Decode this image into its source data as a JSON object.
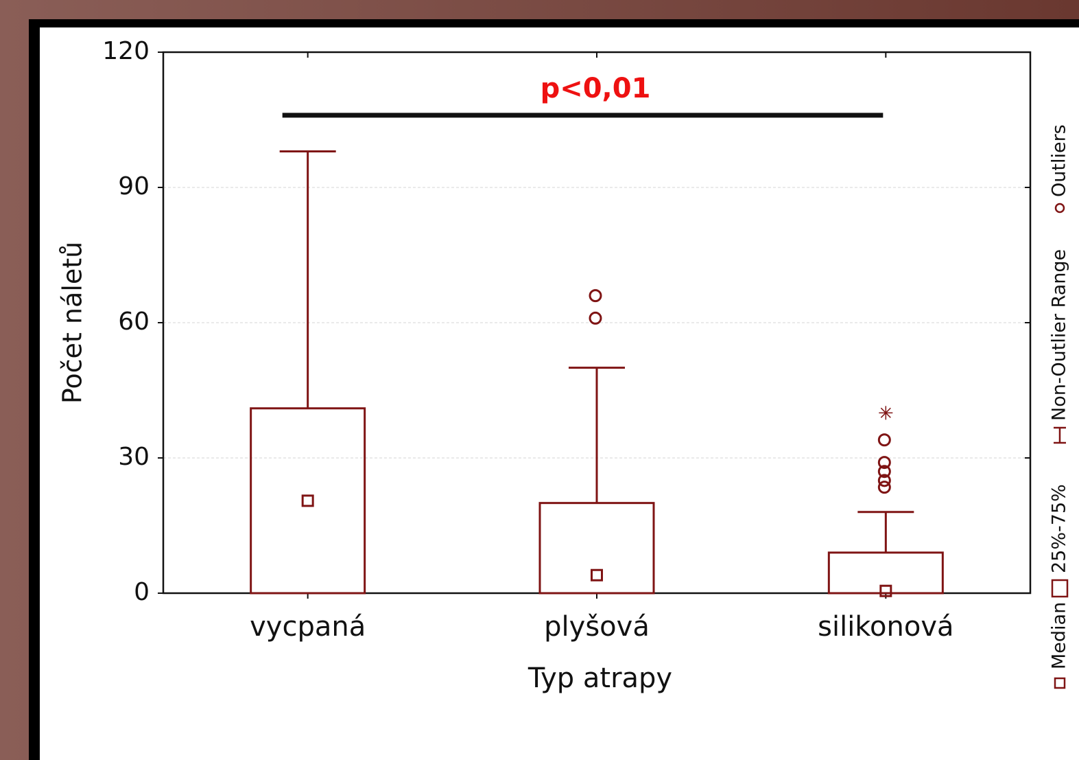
{
  "chart_data": {
    "type": "box",
    "annotation": {
      "text": "p<0,01",
      "y": 106
    },
    "xlabel": "Typ atrapy",
    "ylabel": "Počet náletů",
    "categories": [
      "vycpaná",
      "plyšová",
      "silikonová"
    ],
    "median": [
      20.5,
      4,
      0.5
    ],
    "q1": [
      0,
      0,
      0
    ],
    "q3": [
      41,
      20,
      9
    ],
    "whisker_low": [
      0,
      0,
      0
    ],
    "whisker_high": [
      98,
      50,
      18
    ],
    "outliers": [
      [],
      [
        66,
        61
      ],
      [
        34,
        29,
        27,
        25,
        23.5
      ]
    ],
    "extremes": [
      [],
      [],
      [
        40
      ]
    ],
    "color": "#7f1414",
    "ylim": [
      0,
      120
    ],
    "yticks": [
      0,
      30,
      60,
      90,
      120
    ],
    "grid": true,
    "legend": {
      "median": "Median",
      "box": "25%-75%",
      "whisker": "Non-Outlier Range",
      "outlier": "Outliers"
    }
  }
}
